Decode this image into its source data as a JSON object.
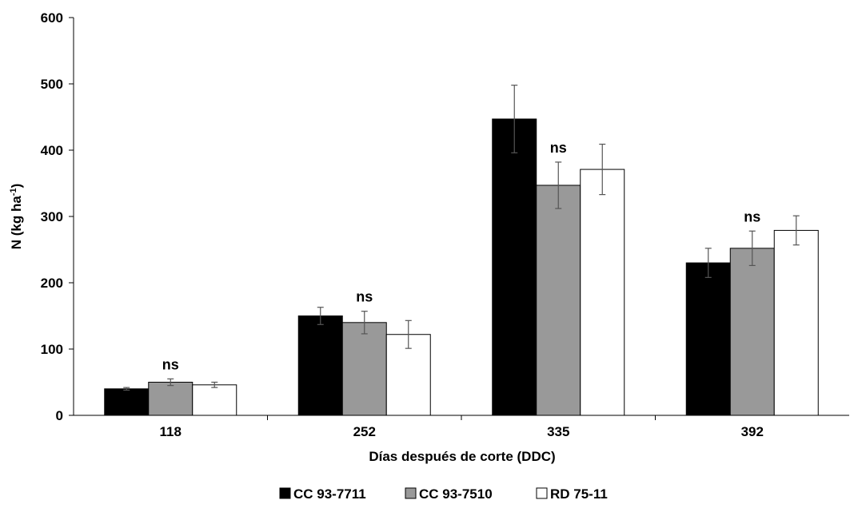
{
  "chart_data": {
    "type": "bar",
    "xlabel": "Días después de corte (DDC)",
    "ylabel_main": "N (kg ha",
    "ylabel_sup": "-1",
    "ylabel_end": ")",
    "ylim": [
      0,
      600
    ],
    "yticks": [
      0,
      100,
      200,
      300,
      400,
      500,
      600
    ],
    "categories": [
      "118",
      "252",
      "335",
      "392"
    ],
    "series": [
      {
        "name": "CC 93-7711",
        "color": "#000000",
        "values": [
          40,
          150,
          447,
          230
        ],
        "errors": [
          2,
          13,
          51,
          22
        ]
      },
      {
        "name": "CC 93-7510",
        "color": "#999999",
        "values": [
          50,
          140,
          347,
          252
        ],
        "errors": [
          5,
          17,
          35,
          26
        ]
      },
      {
        "name": "RD 75-11",
        "color": "#ffffff",
        "values": [
          46,
          122,
          371,
          279
        ],
        "errors": [
          4,
          21,
          38,
          22
        ]
      }
    ],
    "annotations": [
      "ns",
      "ns",
      "ns",
      "ns"
    ],
    "legend_position": "bottom",
    "grid": false
  }
}
